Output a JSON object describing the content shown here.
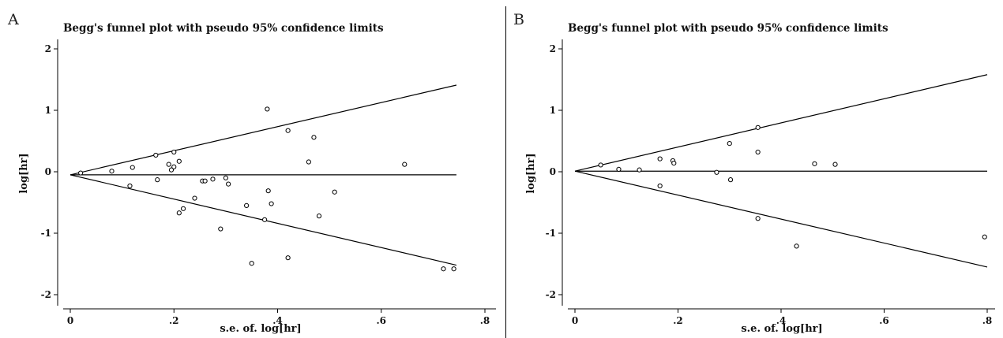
{
  "panels": {
    "a": {
      "letter": "A"
    },
    "b": {
      "letter": "B"
    }
  },
  "chart_data": [
    {
      "type": "scatter",
      "title": "Begg's funnel plot with pseudo 95% confidence limits",
      "xlabel": "s.e. of. log[hr]",
      "ylabel": "log[hr]",
      "xlim": [
        0,
        0.8
      ],
      "ylim": [
        -2,
        2
      ],
      "xticks": [
        {
          "v": 0,
          "t": "0"
        },
        {
          "v": 0.2,
          "t": ".2"
        },
        {
          "v": 0.4,
          "t": ".4"
        },
        {
          "v": 0.6,
          "t": ".6"
        },
        {
          "v": 0.8,
          "t": ".8"
        }
      ],
      "yticks": [
        {
          "v": -2,
          "t": "-2"
        },
        {
          "v": -1,
          "t": "-1"
        },
        {
          "v": 0,
          "t": "0"
        },
        {
          "v": 1,
          "t": "1"
        },
        {
          "v": 2,
          "t": "2"
        }
      ],
      "pooled_estimate": -0.05,
      "confidence_limits": {
        "x_end": 0.745,
        "upper_end": 1.41,
        "lower_end": -1.52
      },
      "points": [
        {
          "x": 0.02,
          "y": -0.02
        },
        {
          "x": 0.08,
          "y": 0.01
        },
        {
          "x": 0.115,
          "y": -0.23
        },
        {
          "x": 0.12,
          "y": 0.07
        },
        {
          "x": 0.165,
          "y": 0.27
        },
        {
          "x": 0.168,
          "y": -0.13
        },
        {
          "x": 0.19,
          "y": 0.12
        },
        {
          "x": 0.195,
          "y": 0.03
        },
        {
          "x": 0.2,
          "y": 0.32
        },
        {
          "x": 0.2,
          "y": 0.08
        },
        {
          "x": 0.21,
          "y": 0.17
        },
        {
          "x": 0.21,
          "y": -0.67
        },
        {
          "x": 0.218,
          "y": -0.6
        },
        {
          "x": 0.24,
          "y": -0.43
        },
        {
          "x": 0.255,
          "y": -0.15
        },
        {
          "x": 0.26,
          "y": -0.15
        },
        {
          "x": 0.275,
          "y": -0.12
        },
        {
          "x": 0.29,
          "y": -0.93
        },
        {
          "x": 0.3,
          "y": -0.1
        },
        {
          "x": 0.305,
          "y": -0.2
        },
        {
          "x": 0.34,
          "y": -0.55
        },
        {
          "x": 0.35,
          "y": -1.49
        },
        {
          "x": 0.375,
          "y": -0.78
        },
        {
          "x": 0.38,
          "y": 1.02
        },
        {
          "x": 0.382,
          "y": -0.31
        },
        {
          "x": 0.388,
          "y": -0.52
        },
        {
          "x": 0.42,
          "y": 0.67
        },
        {
          "x": 0.42,
          "y": -1.4
        },
        {
          "x": 0.46,
          "y": 0.16
        },
        {
          "x": 0.47,
          "y": 0.56
        },
        {
          "x": 0.48,
          "y": -0.72
        },
        {
          "x": 0.51,
          "y": -0.33
        },
        {
          "x": 0.645,
          "y": 0.12
        },
        {
          "x": 0.72,
          "y": -1.58
        },
        {
          "x": 0.74,
          "y": -1.58
        }
      ]
    },
    {
      "type": "scatter",
      "title": "Begg's funnel plot with pseudo 95% confidence limits",
      "xlabel": "s.e. of. log[hr]",
      "ylabel": "log[hr]",
      "xlim": [
        0,
        0.8
      ],
      "ylim": [
        -2,
        2
      ],
      "xticks": [
        {
          "v": 0,
          "t": "0"
        },
        {
          "v": 0.2,
          "t": ".2"
        },
        {
          "v": 0.4,
          "t": ".4"
        },
        {
          "v": 0.6,
          "t": ".6"
        },
        {
          "v": 0.8,
          "t": ".8"
        }
      ],
      "yticks": [
        {
          "v": -2,
          "t": "-2"
        },
        {
          "v": -1,
          "t": "-1"
        },
        {
          "v": 0,
          "t": "0"
        },
        {
          "v": 1,
          "t": "1"
        },
        {
          "v": 2,
          "t": "2"
        }
      ],
      "pooled_estimate": 0.01,
      "confidence_limits": {
        "x_end": 0.8,
        "upper_end": 1.58,
        "lower_end": -1.55
      },
      "points": [
        {
          "x": 0.05,
          "y": 0.11
        },
        {
          "x": 0.085,
          "y": 0.04
        },
        {
          "x": 0.125,
          "y": 0.03
        },
        {
          "x": 0.165,
          "y": 0.21
        },
        {
          "x": 0.165,
          "y": -0.23
        },
        {
          "x": 0.19,
          "y": 0.18
        },
        {
          "x": 0.192,
          "y": 0.14
        },
        {
          "x": 0.275,
          "y": -0.01
        },
        {
          "x": 0.3,
          "y": 0.46
        },
        {
          "x": 0.302,
          "y": -0.13
        },
        {
          "x": 0.355,
          "y": 0.72
        },
        {
          "x": 0.355,
          "y": 0.32
        },
        {
          "x": 0.355,
          "y": -0.76
        },
        {
          "x": 0.43,
          "y": -1.21
        },
        {
          "x": 0.465,
          "y": 0.13
        },
        {
          "x": 0.505,
          "y": 0.12
        },
        {
          "x": 0.795,
          "y": -1.06
        }
      ]
    }
  ]
}
